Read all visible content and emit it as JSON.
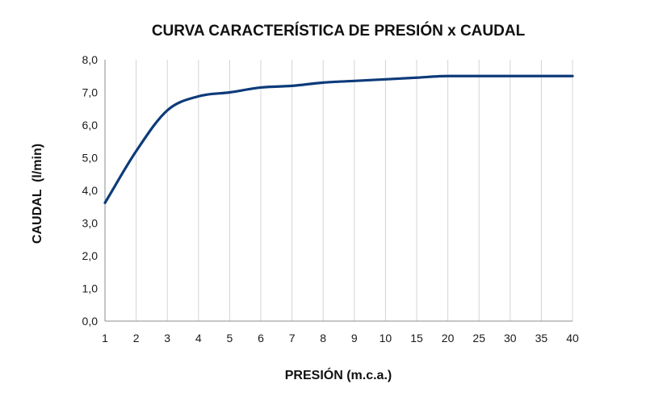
{
  "chart_data": {
    "type": "line",
    "title": "CURVA CARACTERÍSTICA DE PRESIÓN x CAUDAL",
    "xlabel": "PRESIÓN (m.c.a.)",
    "ylabel": "CAUDAL  (l/min)",
    "categories": [
      "1",
      "2",
      "3",
      "4",
      "5",
      "6",
      "7",
      "8",
      "9",
      "10",
      "15",
      "20",
      "25",
      "30",
      "35",
      "40"
    ],
    "yticks": [
      "0,0",
      "1,0",
      "2,0",
      "3,0",
      "4,0",
      "5,0",
      "6,0",
      "7,0",
      "8,0"
    ],
    "ylim": [
      0,
      8
    ],
    "grid": {
      "horizontal": false,
      "vertical": true
    },
    "series": [
      {
        "color": "#0d3b7a",
        "values": [
          3.62,
          5.2,
          6.45,
          6.88,
          7.0,
          7.15,
          7.2,
          7.3,
          7.35,
          7.4,
          7.45,
          7.5,
          7.5,
          7.5,
          7.5,
          7.5
        ]
      }
    ],
    "colors": {
      "line": "#0d3b7a",
      "grid": "#d4d4d4",
      "axis": "#8c8c8c",
      "text": "#1a1a1a"
    }
  }
}
